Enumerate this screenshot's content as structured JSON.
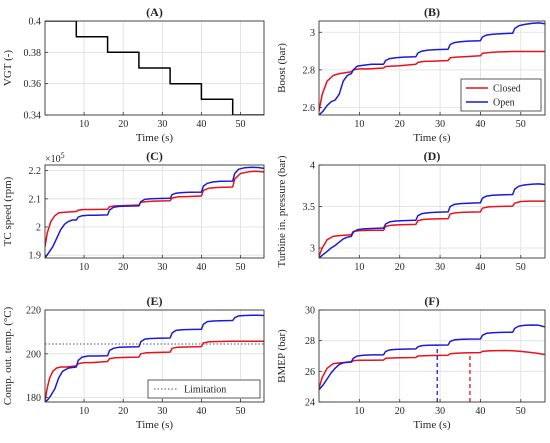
{
  "colors": {
    "closed": "#e8111d",
    "open": "#1a1ad9",
    "vgt": "#000000",
    "limitation": "#555555"
  },
  "chart_data": [
    {
      "id": "A",
      "type": "line",
      "title": "(A)",
      "xlabel": "Time (s)",
      "ylabel": "VGT (-)",
      "xlim": [
        0,
        56
      ],
      "ylim": [
        0.34,
        0.4
      ],
      "xticks": [
        10,
        20,
        30,
        40,
        50
      ],
      "yticks": [
        0.34,
        0.36,
        0.38,
        0.4
      ],
      "xtick_labels": [
        "10",
        "20",
        "30",
        "40",
        "50"
      ],
      "ytick_labels": [
        "0.34",
        "0.36",
        "0.38",
        "0.4"
      ],
      "grid": true,
      "series": [
        {
          "color": "#000000",
          "step": true,
          "x": [
            0,
            8,
            16,
            24,
            32,
            40,
            48,
            56
          ],
          "y": [
            0.4,
            0.39,
            0.38,
            0.37,
            0.36,
            0.35,
            0.34,
            0.34
          ]
        }
      ]
    },
    {
      "id": "B",
      "type": "line",
      "title": "(B)",
      "xlabel": "Time (s)",
      "ylabel": "Boost (bar)",
      "xlim": [
        0,
        56
      ],
      "ylim": [
        2.56,
        3.06
      ],
      "xticks": [
        10,
        20,
        30,
        40,
        50
      ],
      "yticks": [
        2.6,
        2.8,
        3.0
      ],
      "xtick_labels": [
        "10",
        "20",
        "30",
        "40",
        "50"
      ],
      "ytick_labels": [
        "2.6",
        "2.8",
        "3"
      ],
      "grid": true,
      "legend": "bottom-right",
      "series": [
        {
          "name": "Closed",
          "color": "#e8111d",
          "x": [
            0,
            0.8,
            2,
            3.5,
            5,
            6.5,
            8,
            8.5,
            10,
            12,
            16,
            16.5,
            18,
            20,
            24,
            24.5,
            26,
            28,
            32,
            32.5,
            34,
            36,
            40,
            40.5,
            42,
            44,
            48,
            56
          ],
          "y": [
            2.58,
            2.67,
            2.74,
            2.77,
            2.78,
            2.785,
            2.79,
            2.8,
            2.805,
            2.805,
            2.81,
            2.818,
            2.82,
            2.822,
            2.83,
            2.84,
            2.845,
            2.846,
            2.85,
            2.864,
            2.868,
            2.87,
            2.875,
            2.888,
            2.892,
            2.895,
            2.898,
            2.898
          ]
        },
        {
          "name": "Open",
          "color": "#1a1ad9",
          "x": [
            0,
            1,
            2,
            3,
            4,
            5,
            6,
            7,
            8,
            8.5,
            9.5,
            11,
            13,
            16,
            16.5,
            17.5,
            19,
            21,
            24,
            24.5,
            25.5,
            27,
            29,
            32,
            32.5,
            33.5,
            35,
            37,
            40,
            40.5,
            41.5,
            43,
            45,
            48,
            48.5,
            49.5,
            51,
            53,
            54.5,
            56
          ],
          "y": [
            2.56,
            2.58,
            2.61,
            2.63,
            2.64,
            2.67,
            2.74,
            2.77,
            2.78,
            2.8,
            2.82,
            2.825,
            2.83,
            2.83,
            2.85,
            2.86,
            2.865,
            2.868,
            2.87,
            2.89,
            2.9,
            2.905,
            2.908,
            2.91,
            2.935,
            2.945,
            2.95,
            2.953,
            2.955,
            2.975,
            2.985,
            2.99,
            2.992,
            2.995,
            3.02,
            3.035,
            3.042,
            3.048,
            3.05,
            3.045
          ]
        }
      ]
    },
    {
      "id": "C",
      "type": "line",
      "title": "(C)",
      "xlabel": "",
      "ylabel": "TC speed (rpm)",
      "xlim": [
        0,
        56
      ],
      "ylim": [
        1.89,
        2.22
      ],
      "xticks": [
        10,
        20,
        30,
        40,
        50
      ],
      "yticks": [
        1.9,
        2.0,
        2.1,
        2.2
      ],
      "xtick_labels": [
        "10",
        "20",
        "30",
        "40",
        "50"
      ],
      "ytick_labels": [
        "1.9",
        "2",
        "2.1",
        "2.2"
      ],
      "y_exponent_label": "×10",
      "y_exponent_power": "5",
      "grid": true,
      "series": [
        {
          "name": "Closed",
          "color": "#e8111d",
          "x": [
            0,
            0.6,
            1.5,
            2.5,
            3.5,
            5,
            8,
            8.5,
            10,
            12,
            16,
            16.5,
            18,
            20,
            24,
            24.5,
            26,
            28,
            32,
            32.5,
            34,
            36,
            40,
            40.5,
            42,
            44,
            48,
            48.5,
            50,
            52,
            54,
            56
          ],
          "y": [
            1.93,
            1.98,
            2.02,
            2.04,
            2.05,
            2.052,
            2.055,
            2.06,
            2.062,
            2.062,
            2.063,
            2.072,
            2.075,
            2.076,
            2.078,
            2.088,
            2.09,
            2.092,
            2.093,
            2.103,
            2.107,
            2.108,
            2.11,
            2.13,
            2.138,
            2.14,
            2.142,
            2.17,
            2.19,
            2.196,
            2.198,
            2.195
          ]
        },
        {
          "name": "Open",
          "color": "#1a1ad9",
          "x": [
            0,
            1,
            2,
            3,
            4,
            5,
            6,
            7,
            8,
            8.5,
            9.5,
            11,
            13,
            16,
            16.5,
            17.5,
            19,
            21,
            24,
            24.5,
            25.5,
            27,
            29,
            32,
            32.5,
            33.5,
            35,
            37,
            40,
            40.5,
            41.5,
            43,
            45,
            48,
            48.5,
            49.5,
            51,
            53,
            54.5,
            56
          ],
          "y": [
            1.89,
            1.91,
            1.93,
            1.96,
            1.99,
            2.01,
            2.02,
            2.025,
            2.025,
            2.035,
            2.04,
            2.042,
            2.042,
            2.043,
            2.06,
            2.07,
            2.073,
            2.074,
            2.075,
            2.09,
            2.098,
            2.1,
            2.101,
            2.102,
            2.115,
            2.12,
            2.122,
            2.123,
            2.124,
            2.145,
            2.155,
            2.16,
            2.162,
            2.163,
            2.19,
            2.205,
            2.21,
            2.212,
            2.211,
            2.208
          ]
        }
      ]
    },
    {
      "id": "D",
      "type": "line",
      "title": "(D)",
      "xlabel": "",
      "ylabel": "Turbine in. pressure (bar)",
      "xlim": [
        0,
        56
      ],
      "ylim": [
        2.88,
        4.0
      ],
      "xticks": [
        10,
        20,
        30,
        40,
        50
      ],
      "yticks": [
        3.0,
        3.5,
        4.0
      ],
      "xtick_labels": [
        "10",
        "20",
        "30",
        "40",
        "50"
      ],
      "ytick_labels": [
        "3",
        "3.5",
        "4"
      ],
      "grid": true,
      "series": [
        {
          "name": "Closed",
          "color": "#e8111d",
          "x": [
            0,
            0.8,
            2,
            3.5,
            5,
            8,
            8.5,
            10,
            12,
            16,
            16.5,
            18,
            20,
            24,
            24.5,
            26,
            28,
            32,
            32.5,
            34,
            36,
            40,
            40.5,
            42,
            44,
            48,
            48.5,
            50,
            52,
            56
          ],
          "y": [
            2.9,
            3.0,
            3.1,
            3.14,
            3.15,
            3.16,
            3.2,
            3.21,
            3.212,
            3.215,
            3.26,
            3.275,
            3.28,
            3.285,
            3.33,
            3.345,
            3.35,
            3.355,
            3.41,
            3.425,
            3.43,
            3.435,
            3.48,
            3.495,
            3.5,
            3.505,
            3.54,
            3.56,
            3.565,
            3.565
          ]
        },
        {
          "name": "Open",
          "color": "#1a1ad9",
          "x": [
            0,
            1,
            2,
            3,
            4,
            5,
            6,
            7,
            8,
            8.5,
            9.5,
            11,
            13,
            16,
            16.5,
            17.5,
            19,
            21,
            24,
            24.5,
            25.5,
            27,
            29,
            32,
            32.5,
            33.5,
            35,
            37,
            40,
            40.5,
            41.5,
            43,
            45,
            48,
            48.5,
            49.5,
            51,
            53,
            54.5,
            56
          ],
          "y": [
            2.88,
            2.92,
            2.96,
            3.0,
            3.03,
            3.07,
            3.11,
            3.13,
            3.14,
            3.19,
            3.22,
            3.23,
            3.235,
            3.24,
            3.29,
            3.315,
            3.325,
            3.33,
            3.335,
            3.39,
            3.415,
            3.425,
            3.43,
            3.435,
            3.5,
            3.525,
            3.535,
            3.54,
            3.545,
            3.6,
            3.625,
            3.635,
            3.64,
            3.645,
            3.71,
            3.745,
            3.76,
            3.77,
            3.772,
            3.765
          ]
        }
      ]
    },
    {
      "id": "E",
      "type": "line",
      "title": "(E)",
      "xlabel": "Time (s)",
      "ylabel": "Comp. out. temp. (°C)",
      "xlim": [
        0,
        56
      ],
      "ylim": [
        178,
        220
      ],
      "xticks": [
        10,
        20,
        30,
        40,
        50
      ],
      "yticks": [
        180,
        200,
        220
      ],
      "xtick_labels": [
        "10",
        "20",
        "30",
        "40",
        "50"
      ],
      "ytick_labels": [
        "180",
        "200",
        "220"
      ],
      "grid": true,
      "legend": "bottom-right",
      "reference_lines": [
        {
          "name": "Limitation",
          "y": 204.5,
          "style": "dotted"
        }
      ],
      "series": [
        {
          "name": "Closed",
          "color": "#e8111d",
          "x": [
            0,
            0.5,
            1.2,
            2,
            3,
            4,
            5.5,
            8,
            8.5,
            10,
            12,
            16,
            16.5,
            18,
            20,
            24,
            24.5,
            26,
            28,
            32,
            32.5,
            34,
            36,
            40,
            40.5,
            42,
            44,
            48,
            56
          ],
          "y": [
            178,
            184,
            189,
            192,
            193.5,
            194,
            194,
            194.5,
            195.5,
            196,
            196,
            196.5,
            197.8,
            198.2,
            198.3,
            198.5,
            200,
            200.5,
            200.6,
            200.8,
            202.5,
            203,
            203.1,
            203.3,
            205,
            205.5,
            205.6,
            205.7,
            205.7
          ]
        },
        {
          "name": "Open",
          "color": "#1a1ad9",
          "x": [
            0,
            0.7,
            1.5,
            2.5,
            3.5,
            4.5,
            6,
            8,
            8.5,
            9.5,
            11,
            13,
            16,
            16.5,
            17.5,
            19,
            21,
            24,
            24.5,
            25.5,
            27,
            29,
            32,
            32.5,
            33.5,
            35,
            37,
            40,
            40.5,
            41.5,
            43,
            45,
            48,
            48.5,
            49.5,
            51,
            53,
            54.5,
            56
          ],
          "y": [
            178,
            179,
            181,
            184,
            189,
            192,
            193.5,
            194,
            197,
            198.5,
            199,
            199,
            199.1,
            201.5,
            202.5,
            203,
            203.1,
            203.2,
            205.5,
            206.7,
            207,
            207.1,
            207.2,
            209.5,
            210.7,
            211,
            211.1,
            211.2,
            213.5,
            214.7,
            215,
            215.1,
            215.2,
            216.5,
            217.3,
            217.5,
            217.6,
            217.6,
            217.5
          ]
        }
      ]
    },
    {
      "id": "F",
      "type": "line",
      "title": "(F)",
      "xlabel": "Time (s)",
      "ylabel": "BMEP (bar)",
      "xlim": [
        0,
        56
      ],
      "ylim": [
        24,
        30
      ],
      "xticks": [
        10,
        20,
        30,
        40,
        50
      ],
      "yticks": [
        24,
        26,
        28,
        30
      ],
      "xtick_labels": [
        "10",
        "20",
        "30",
        "40",
        "50"
      ],
      "ytick_labels": [
        "24",
        "26",
        "28",
        "30"
      ],
      "grid": true,
      "markers": [
        {
          "x": 29.3,
          "y_top": 27.7,
          "color": "#1a1ad9",
          "style": "dashed"
        },
        {
          "x": 37.4,
          "y_top": 27.2,
          "color": "#e8111d",
          "style": "dashed"
        }
      ],
      "series": [
        {
          "name": "Closed",
          "color": "#e8111d",
          "x": [
            0,
            0.8,
            2,
            3.5,
            5,
            8,
            8.5,
            10,
            12,
            16,
            16.5,
            18,
            20,
            24,
            24.5,
            26,
            28,
            32,
            32.5,
            34,
            36,
            40,
            40.5,
            42,
            44,
            46,
            48,
            50,
            52,
            54,
            56
          ],
          "y": [
            24.9,
            25.6,
            26.2,
            26.5,
            26.55,
            26.6,
            26.7,
            26.72,
            26.72,
            26.73,
            26.85,
            26.87,
            26.88,
            26.9,
            27.0,
            27.02,
            27.03,
            27.05,
            27.15,
            27.18,
            27.2,
            27.22,
            27.3,
            27.33,
            27.35,
            27.36,
            27.34,
            27.3,
            27.25,
            27.18,
            27.1
          ]
        },
        {
          "name": "Open",
          "color": "#1a1ad9",
          "x": [
            0,
            1,
            2,
            3,
            4,
            5,
            6,
            7,
            8,
            8.5,
            9.5,
            11,
            13,
            16,
            16.5,
            17.5,
            19,
            21,
            24,
            24.5,
            25.5,
            27,
            29,
            32,
            32.5,
            33.5,
            35,
            37,
            40,
            40.5,
            41.5,
            43,
            45,
            48,
            48.5,
            49.5,
            51,
            53,
            54.5,
            56
          ],
          "y": [
            24.8,
            25.1,
            25.5,
            25.9,
            26.2,
            26.45,
            26.55,
            26.6,
            26.62,
            26.85,
            27.0,
            27.05,
            27.07,
            27.08,
            27.3,
            27.4,
            27.43,
            27.45,
            27.46,
            27.6,
            27.68,
            27.7,
            27.71,
            27.72,
            27.95,
            28.05,
            28.08,
            28.1,
            28.11,
            28.35,
            28.48,
            28.52,
            28.54,
            28.55,
            28.8,
            28.95,
            29.0,
            29.02,
            29.0,
            28.9
          ]
        }
      ]
    }
  ]
}
